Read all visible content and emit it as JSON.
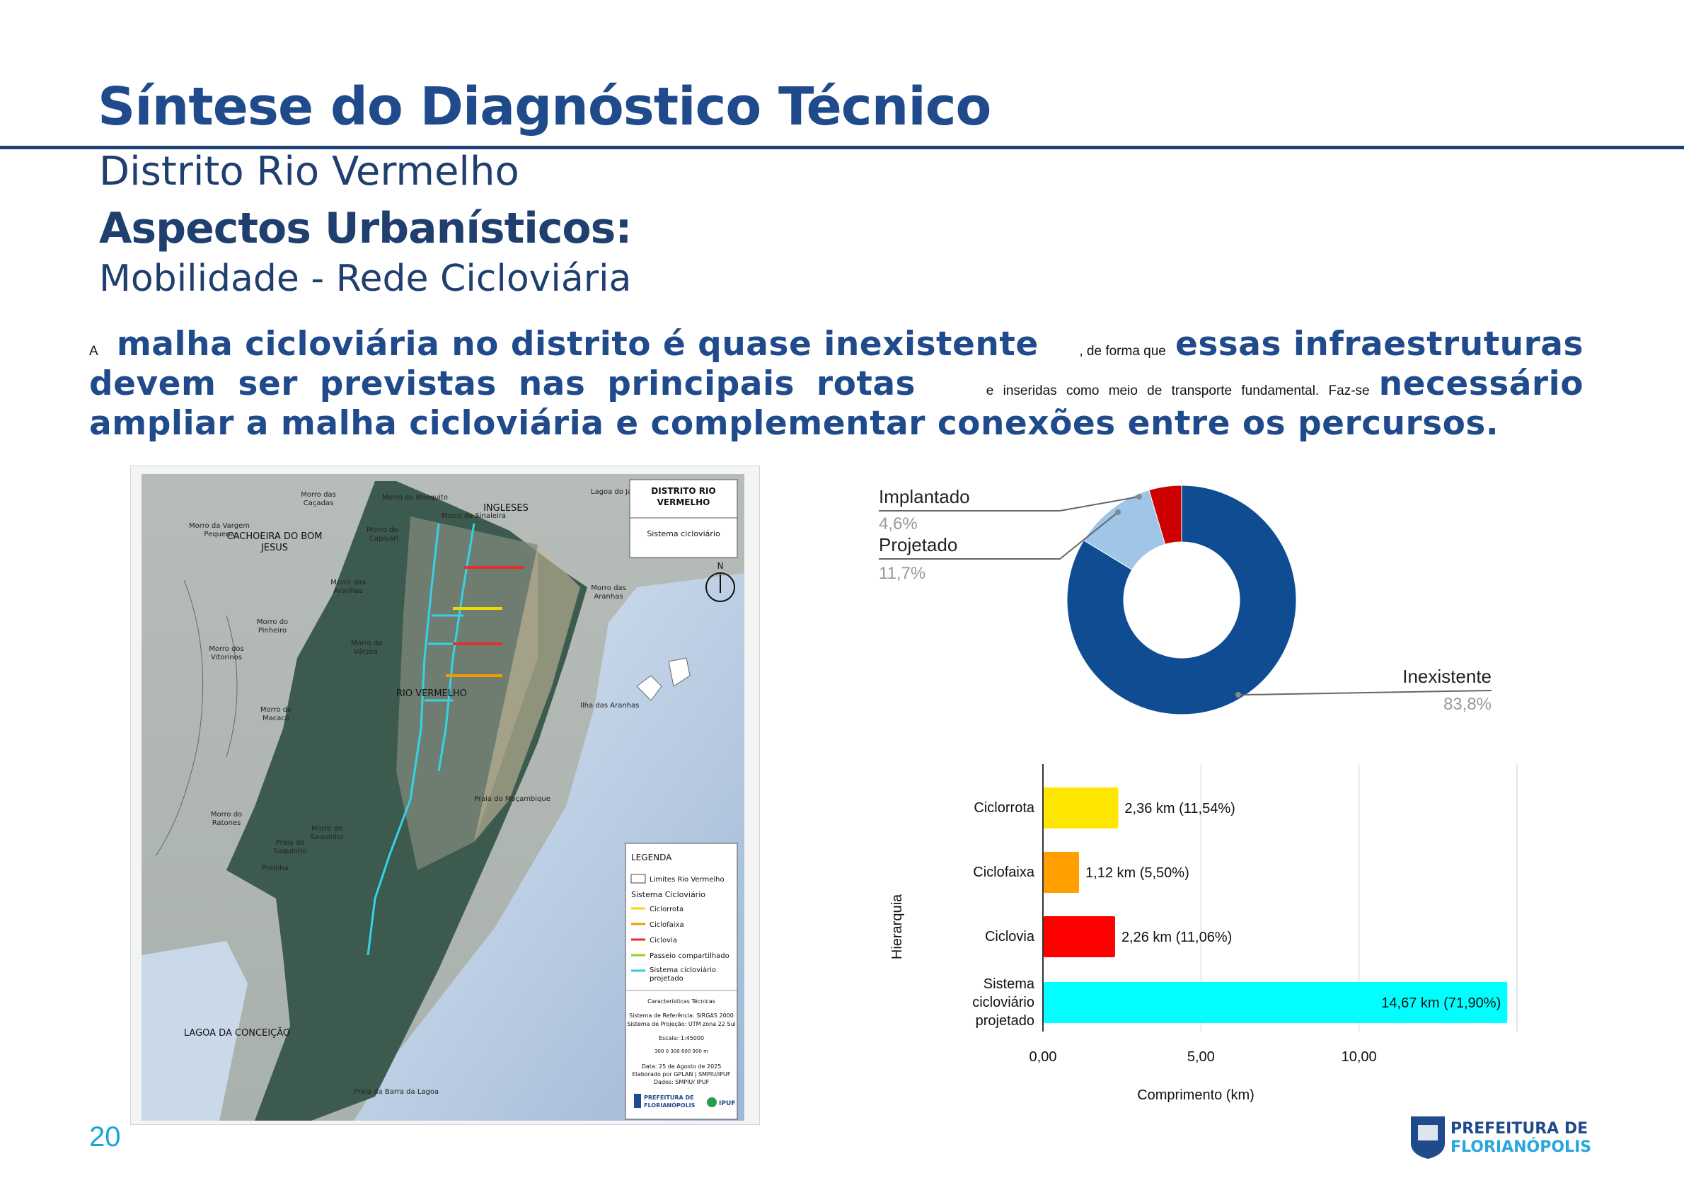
{
  "header": {
    "title": "Síntese do Diagnóstico Técnico",
    "subtitle": "Distrito Rio Vermelho",
    "section": "Aspectos Urbanísticos:",
    "section_sub": "Mobilidade - Rede Cicloviária"
  },
  "paragraph": {
    "s1": "A",
    "b1": "malha cicloviária no distrito é quase inexistente",
    "s2": ", de forma que",
    "b2": "essas infraestruturas",
    "b3": "devem ser previstas nas principais rotas",
    "s3": "e inseridas como meio de transporte fundamental. Faz-se",
    "b4": "necessário",
    "b5": "ampliar a malha cicloviária e complementar conexões entre os percursos."
  },
  "map": {
    "box_title_line1": "DISTRITO RIO",
    "box_title_line2": "VERMELHO",
    "box_subtitle": "Sistema cicloviário",
    "north": "N",
    "places": {
      "ingleses": "INGLESES",
      "cachoeira1": "CACHOEIRA DO BOM",
      "cachoeira2": "JESUS",
      "rio_vermelho": "RIO VERMELHO",
      "lagoa_conceicao": "LAGOA DA CONCEIÇÃO",
      "praia_mocambique": "Praia do Moçambique",
      "ilha_aranhas": "Ilha das Aranhas",
      "lagoa_ja": "Lagoa do Ja",
      "morro_cacadas1": "Morro das",
      "morro_cacadas2": "Caçadas",
      "morro_vargem1": "Morro da Vargem",
      "morro_vargem2": "Pequena",
      "morro_mosquito": "Morro do Mosquito",
      "morro_sinaleira": "Morro da Sinaleira",
      "morro_capivari1": "Morro do",
      "morro_capivari2": "Capivari",
      "morro_aranhas1": "Morro das",
      "morro_aranhas2": "Aranhas",
      "morro_pinheiro1": "Morro do",
      "morro_pinheiro2": "Pinheiro",
      "morro_vitorinos1": "Morro dos",
      "morro_vitorinos2": "Vitorinos",
      "morro_varzea1": "Morro da",
      "morro_varzea2": "Várzea",
      "morro_macaco1": "Morro do",
      "morro_macaco2": "Macaco",
      "morro_ratones1": "Morro do",
      "morro_ratones2": "Ratones",
      "morro_saquinho1": "Morro do",
      "morro_saquinho2": "Saquinho",
      "praia_saquinho1": "Praia do",
      "praia_saquinho2": "Saquinho",
      "prainha": "Prainha",
      "praia_barra": "Praia da Barra da Lagoa",
      "morro_aranhas_e1": "Morro das",
      "morro_aranhas_e2": "Aranhas"
    },
    "legend": {
      "title": "LEGENDA",
      "limits": "Limites Rio Vermelho",
      "system_title": "Sistema Cicloviário",
      "items": [
        {
          "label": "Ciclorrota",
          "color": "#f0d800"
        },
        {
          "label": "Ciclofaixa",
          "color": "#f39a00"
        },
        {
          "label": "Ciclovia",
          "color": "#e23030"
        },
        {
          "label": "Passeio compartilhado",
          "color": "#8fd12a"
        },
        {
          "label": "Sistema cicloviário",
          "label2": "projetado",
          "color": "#39c9d9"
        }
      ],
      "tech_title": "Características Técnicas",
      "tech1": "Sistema de Referência: SIRGAS 2000",
      "tech2": "Sistema de Projeção: UTM zona 22 Sul",
      "scale": "Escala: 1:45000",
      "scalebar": "300    0    300   600   900 m",
      "date": "Data: 25 de Agosto de 2025",
      "by": "Elaborado por GPLAN | SMPIU/IPUF",
      "data": "Dados: SMPIU/ IPUF",
      "logo1": "PREFEITURA DE",
      "logo2": "FLORIANÓPOLIS",
      "logo3": "IPUF"
    }
  },
  "donut_chart": {
    "chart_data": {
      "type": "pie",
      "categories": [
        "Inexistente",
        "Projetado",
        "Implantado"
      ],
      "values": [
        83.8,
        11.7,
        4.6
      ],
      "value_labels": [
        "83,8%",
        "11,7%",
        "4,6%"
      ],
      "colors": [
        "#0f4c92",
        "#9fc5e8",
        "#cc0000"
      ],
      "hole": true
    }
  },
  "bar_chart": {
    "chart_data": {
      "type": "bar",
      "orientation": "horizontal",
      "categories": [
        "Ciclorrota",
        "Ciclofaixa",
        "Ciclovia",
        "Sistema cicloviário projetado"
      ],
      "category_lines": [
        [
          "Ciclorrota"
        ],
        [
          "Ciclofaixa"
        ],
        [
          "Ciclovia"
        ],
        [
          "Sistema",
          "cicloviário",
          "projetado"
        ]
      ],
      "values": [
        2.36,
        1.12,
        2.26,
        14.67
      ],
      "data_labels": [
        "2,36 km (11,54%)",
        "1,12 km (5,50%)",
        "2,26 km (11,06%)",
        "14,67 km (71,90%)"
      ],
      "colors": [
        "#ffe600",
        "#ff9f00",
        "#ff0000",
        "#00ffff"
      ],
      "xlabel": "Comprimento (km)",
      "ylabel": "Hierarquia",
      "xlim": [
        0,
        15
      ],
      "xticks": [
        0,
        5,
        10
      ],
      "xtick_labels": [
        "0,00",
        "5,00",
        "10,00"
      ],
      "grid": true
    }
  },
  "footer": {
    "page_number": "20",
    "logo_line1": "PREFEITURA DE",
    "logo_line2": "FLORIANÓPOLIS"
  }
}
